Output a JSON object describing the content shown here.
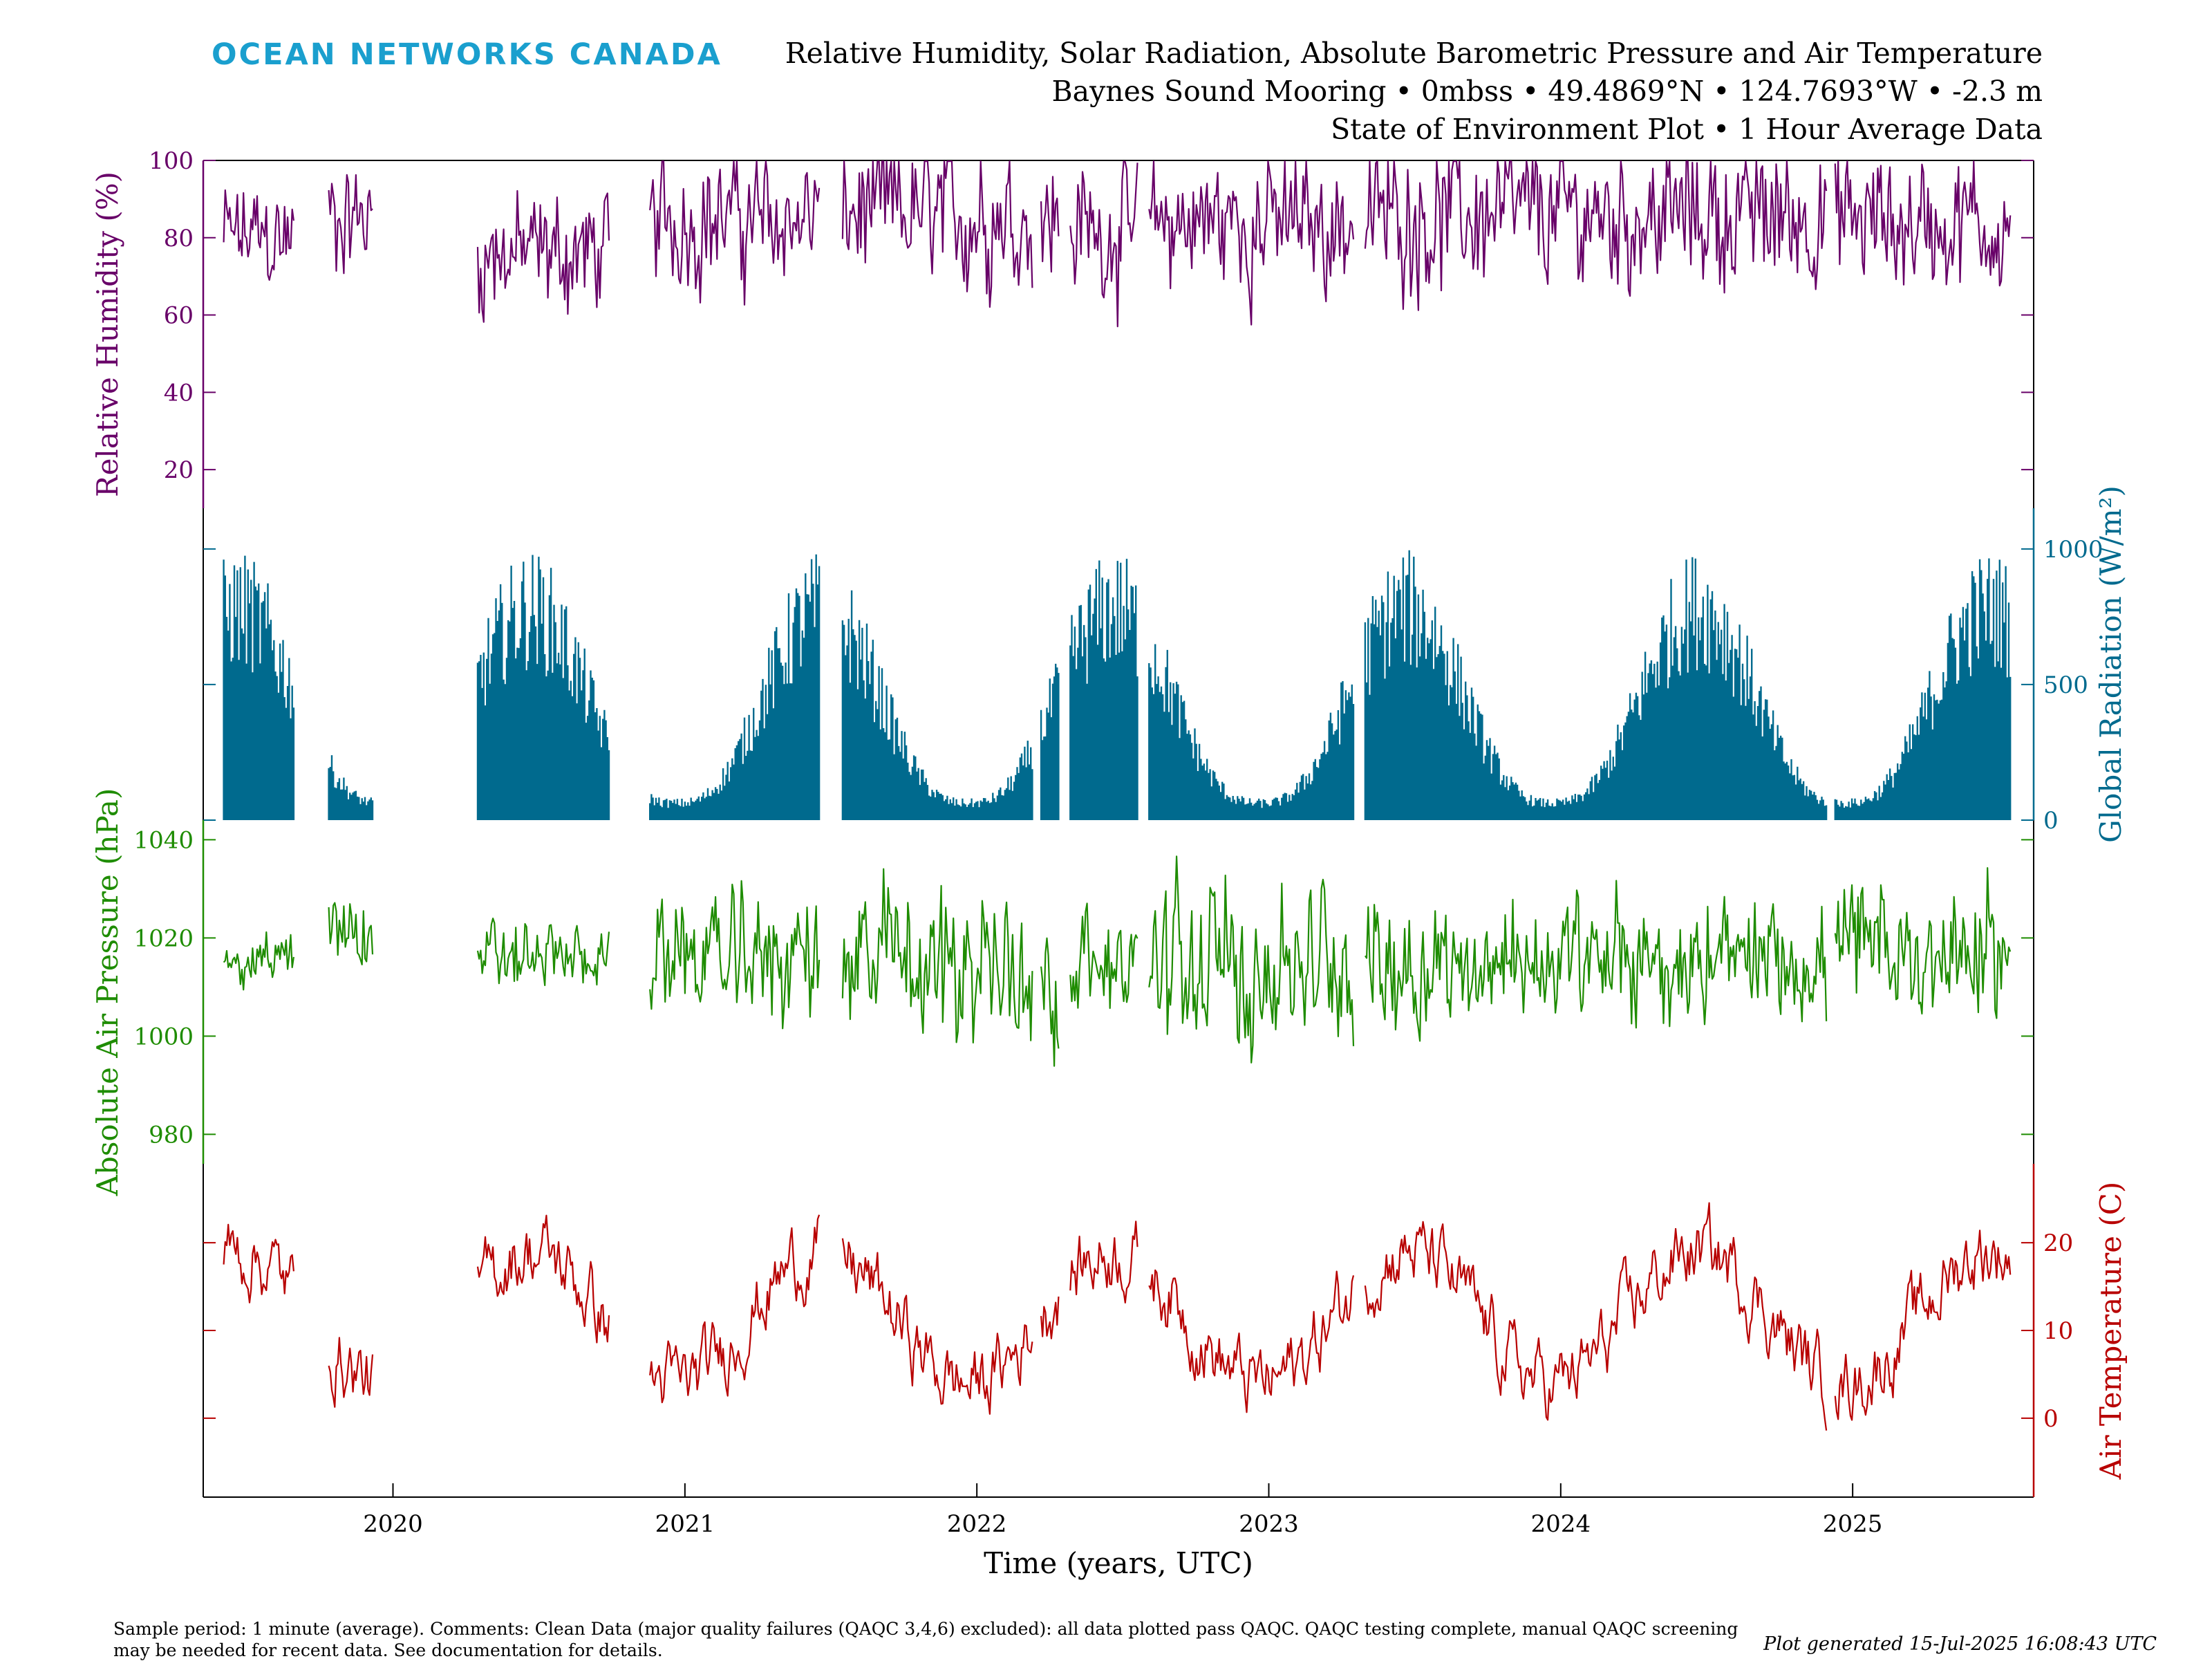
{
  "logo_text": "OCEAN NETWORKS CANADA",
  "title_lines": [
    "Relative Humidity, Solar Radiation, Absolute Barometric Pressure and Air Temperature",
    "Baynes Sound Mooring • 0mbss • 49.4869°N • 124.7693°W • -2.3 m",
    "State of Environment Plot • 1 Hour Average Data"
  ],
  "footer_text": "Sample period: 1 minute (average). Comments: Clean Data (major quality failures (QAQC 3,4,6) excluded): all data plotted pass QAQC. QAQC testing complete, manual QAQC screening may be needed for recent data. See documentation for details.",
  "generated_text": "Plot generated 15-Jul-2025 16:08:43 UTC",
  "colors": {
    "humidity": "#680068",
    "radiation": "#006a8e",
    "pressure": "#1e8c00",
    "temperature": "#b80000"
  },
  "chart_data": [
    {
      "type": "line",
      "ylabel": "Relative Humidity (%)",
      "ylim": [
        10,
        100
      ],
      "yticks": [
        20,
        40,
        60,
        80,
        100
      ],
      "axis_side": "left",
      "data_segments": [
        {
          "start": 2019.42,
          "end": 2019.66,
          "base": 80,
          "spread": 30,
          "mode": "flat"
        },
        {
          "start": 2019.78,
          "end": 2019.93,
          "base": 85,
          "spread": 30,
          "mode": "flat"
        },
        {
          "start": 2020.29,
          "end": 2020.74,
          "base": 76,
          "spread": 32,
          "mode": "flat"
        },
        {
          "start": 2020.88,
          "end": 2021.46,
          "base": 85,
          "spread": 35,
          "mode": "flat"
        },
        {
          "start": 2021.54,
          "end": 2022.19,
          "base": 86,
          "spread": 38,
          "mode": "flat"
        },
        {
          "start": 2022.22,
          "end": 2022.28,
          "base": 84,
          "spread": 40,
          "mode": "flat"
        },
        {
          "start": 2022.32,
          "end": 2022.55,
          "base": 82,
          "spread": 35,
          "mode": "flat"
        },
        {
          "start": 2022.59,
          "end": 2023.29,
          "base": 84,
          "spread": 38,
          "mode": "flat"
        },
        {
          "start": 2023.33,
          "end": 2024.91,
          "base": 86,
          "spread": 38,
          "mode": "flat"
        },
        {
          "start": 2024.94,
          "end": 2025.54,
          "base": 84,
          "spread": 38,
          "mode": "flat"
        }
      ]
    },
    {
      "type": "bar",
      "ylabel": "Global Radiation (W/m²)",
      "ylim": [
        0,
        1150
      ],
      "yticks": [
        0,
        500,
        1000
      ],
      "axis_side": "right",
      "data_segments": [
        {
          "start": 2019.42,
          "end": 2019.66,
          "mode": "seasonal"
        },
        {
          "start": 2019.78,
          "end": 2019.93,
          "mode": "seasonal"
        },
        {
          "start": 2020.29,
          "end": 2020.74,
          "mode": "seasonal"
        },
        {
          "start": 2020.88,
          "end": 2021.46,
          "mode": "seasonal"
        },
        {
          "start": 2021.54,
          "end": 2022.19,
          "mode": "seasonal"
        },
        {
          "start": 2022.22,
          "end": 2022.28,
          "mode": "seasonal"
        },
        {
          "start": 2022.32,
          "end": 2022.55,
          "mode": "seasonal"
        },
        {
          "start": 2022.59,
          "end": 2023.29,
          "mode": "seasonal"
        },
        {
          "start": 2023.33,
          "end": 2024.91,
          "mode": "seasonal"
        },
        {
          "start": 2024.94,
          "end": 2025.54,
          "mode": "seasonal"
        }
      ],
      "peak_value": 1000,
      "winter_value": 80
    },
    {
      "type": "line",
      "ylabel": "Absolute Air Pressure (hPa)",
      "ylim": [
        974,
        1044
      ],
      "yticks": [
        980,
        1000,
        1020,
        1040
      ],
      "axis_side": "left",
      "data_segments": [
        {
          "start": 2019.42,
          "end": 2019.66,
          "base": 1016,
          "spread": 10,
          "mode": "flat"
        },
        {
          "start": 2019.78,
          "end": 2019.93,
          "base": 1022,
          "spread": 18,
          "mode": "flat"
        },
        {
          "start": 2020.29,
          "end": 2020.74,
          "base": 1016,
          "spread": 14,
          "mode": "flat"
        },
        {
          "start": 2020.88,
          "end": 2021.46,
          "base": 1016,
          "spread": 26,
          "mode": "flat"
        },
        {
          "start": 2021.54,
          "end": 2022.19,
          "base": 1015,
          "spread": 34,
          "mode": "flat"
        },
        {
          "start": 2022.22,
          "end": 2022.28,
          "base": 1010,
          "spread": 30,
          "mode": "flat"
        },
        {
          "start": 2022.32,
          "end": 2022.55,
          "base": 1015,
          "spread": 20,
          "mode": "flat"
        },
        {
          "start": 2022.59,
          "end": 2023.29,
          "base": 1014,
          "spread": 34,
          "mode": "flat"
        },
        {
          "start": 2023.33,
          "end": 2024.91,
          "base": 1015,
          "spread": 26,
          "mode": "flat"
        },
        {
          "start": 2024.94,
          "end": 2025.54,
          "base": 1017,
          "spread": 28,
          "mode": "flat"
        }
      ]
    },
    {
      "type": "line",
      "ylabel": "Air Temperature (C)",
      "ylim": [
        -9,
        29
      ],
      "yticks": [
        0,
        10,
        20
      ],
      "axis_side": "right",
      "data_segments": [
        {
          "start": 2019.42,
          "end": 2019.66,
          "mode": "seasonal"
        },
        {
          "start": 2019.78,
          "end": 2019.93,
          "mode": "seasonal"
        },
        {
          "start": 2020.29,
          "end": 2020.74,
          "mode": "seasonal"
        },
        {
          "start": 2020.88,
          "end": 2021.46,
          "mode": "seasonal"
        },
        {
          "start": 2021.54,
          "end": 2022.19,
          "mode": "seasonal"
        },
        {
          "start": 2022.22,
          "end": 2022.28,
          "mode": "seasonal"
        },
        {
          "start": 2022.32,
          "end": 2022.55,
          "mode": "seasonal"
        },
        {
          "start": 2022.59,
          "end": 2023.29,
          "mode": "seasonal"
        },
        {
          "start": 2023.33,
          "end": 2024.91,
          "mode": "seasonal"
        },
        {
          "start": 2024.94,
          "end": 2025.54,
          "mode": "seasonal"
        }
      ],
      "summer_value": 19,
      "winter_value": 4
    }
  ],
  "x_axis": {
    "label": "Time (years, UTC)",
    "xlim": [
      2019.35,
      2025.62
    ],
    "ticks": [
      2020,
      2021,
      2022,
      2023,
      2024,
      2025
    ]
  }
}
